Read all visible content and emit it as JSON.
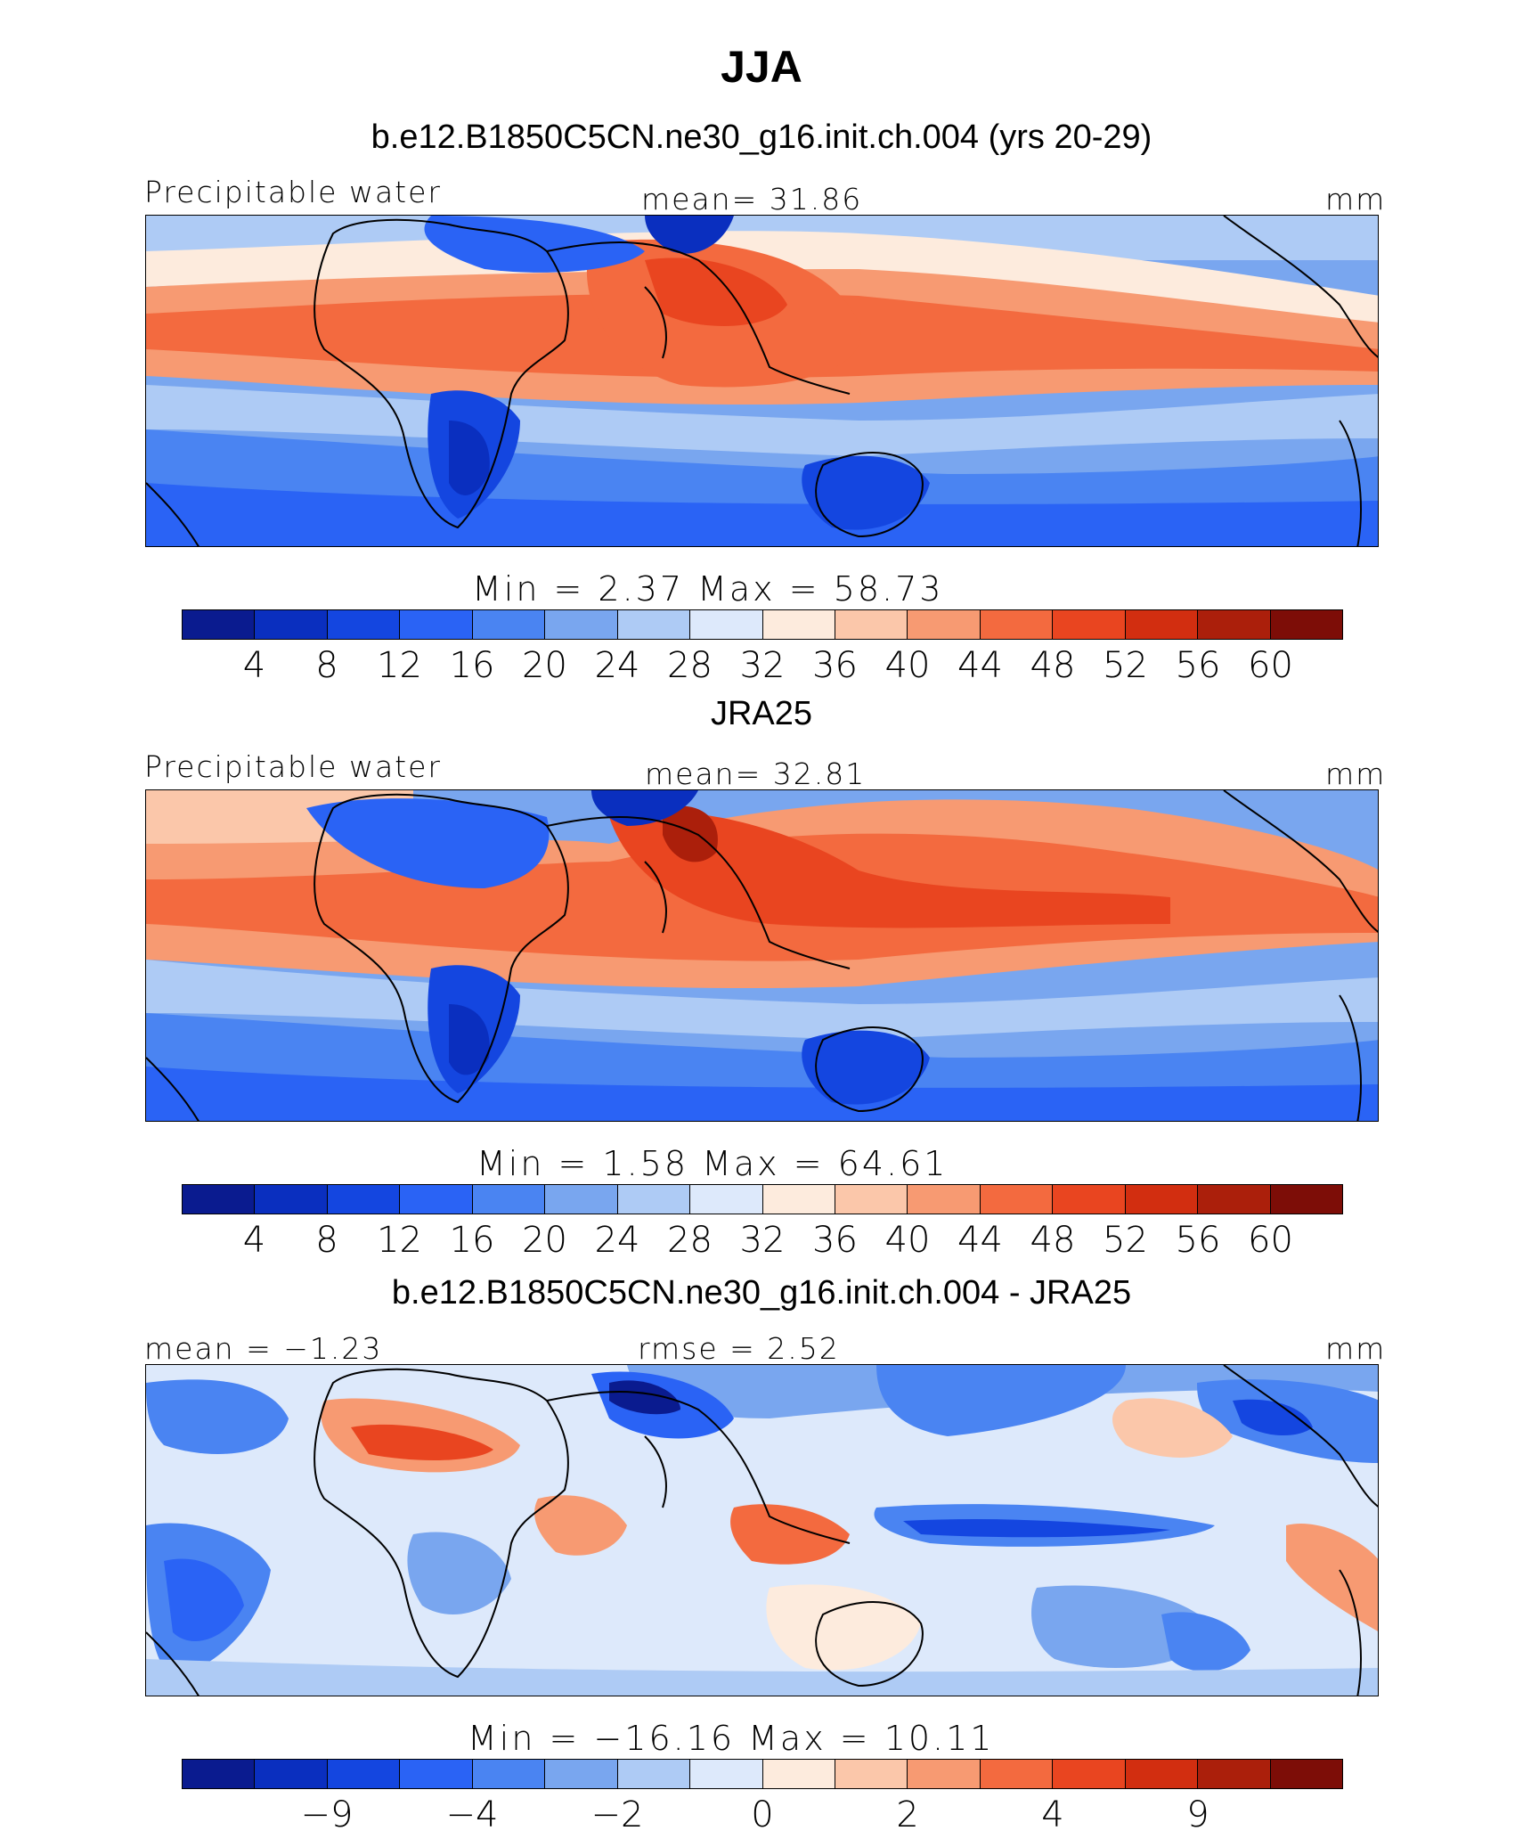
{
  "title": "JJA",
  "colors": [
    "#0a1b8f",
    "#0a2fbf",
    "#1446e0",
    "#2a63f5",
    "#4a84f2",
    "#79a6ef",
    "#aecbf5",
    "#dde9fb",
    "#fdebdd",
    "#fbc7aa",
    "#f79a72",
    "#f36a3f",
    "#e94520",
    "#d22e10",
    "#ab1f0b",
    "#7d0d07"
  ],
  "chart_data": [
    {
      "type": "heatmap",
      "title": "b.e12.B1850C5CN.ne30_g16.init.ch.004 (yrs 20-29)",
      "left_label": "Precipitable water",
      "center_label": "mean=   31.86",
      "units": "mm",
      "min_max": "Min  =     2.37  Max  =    58.73",
      "colorbar_ticks": [
        "4",
        "8",
        "12",
        "16",
        "20",
        "24",
        "28",
        "32",
        "36",
        "40",
        "44",
        "48",
        "52",
        "56",
        "60"
      ],
      "min": 2.37,
      "max": 58.73,
      "mean": 31.86
    },
    {
      "type": "heatmap",
      "title": "JRA25",
      "left_label": "Precipitable water",
      "center_label": "mean=   32.81",
      "units": "mm",
      "min_max": "Min  =     1.58  Max  =    64.61",
      "colorbar_ticks": [
        "4",
        "8",
        "12",
        "16",
        "20",
        "24",
        "28",
        "32",
        "36",
        "40",
        "44",
        "48",
        "52",
        "56",
        "60"
      ],
      "min": 1.58,
      "max": 64.61,
      "mean": 32.81
    },
    {
      "type": "heatmap",
      "title": "b.e12.B1850C5CN.ne30_g16.init.ch.004 - JRA25",
      "left_label": "mean  =   −1.23",
      "center_label": "rmse  =     2.52",
      "units": "mm",
      "min_max": "Min  =  −16.16  Max  =    10.11",
      "colorbar_ticks": [
        "−9",
        "−4",
        "−2",
        "0",
        "2",
        "4",
        "9"
      ],
      "min": -16.16,
      "max": 10.11,
      "mean": -1.23,
      "rmse": 2.52
    }
  ]
}
